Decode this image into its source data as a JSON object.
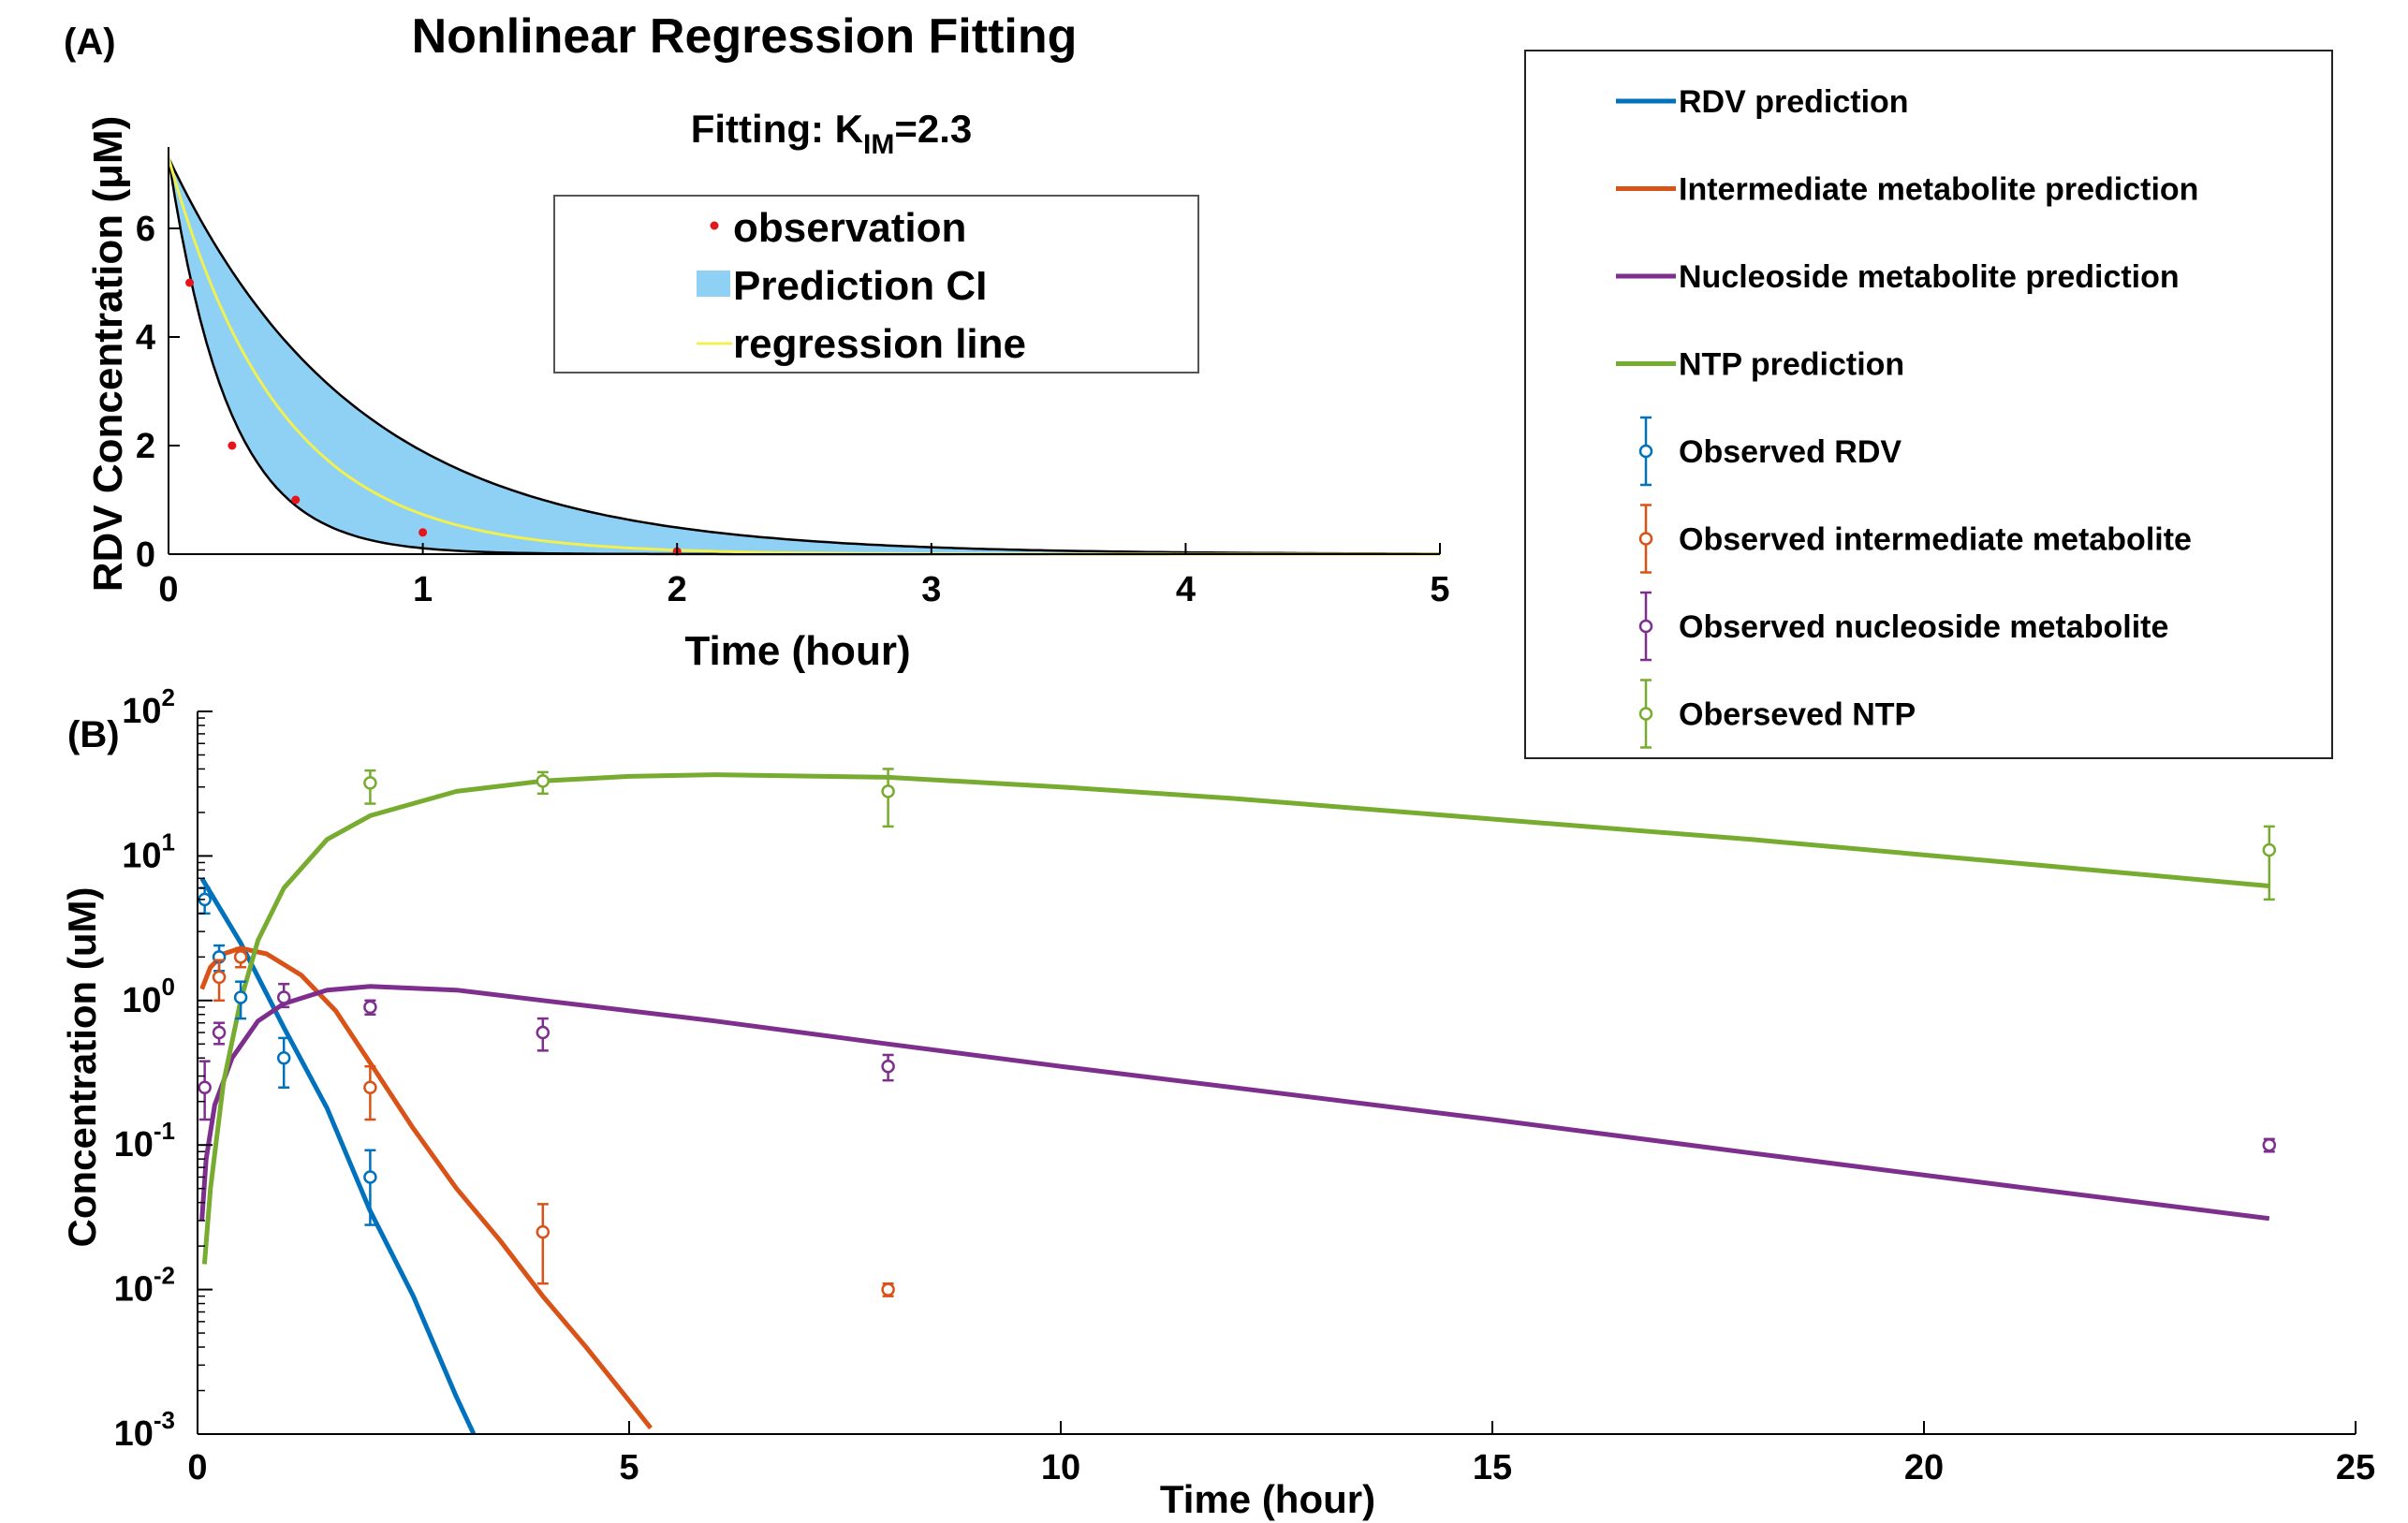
{
  "figure": {
    "panel_a_label": "(A)",
    "panel_b_label": "(B)"
  },
  "chart_data": [
    {
      "type": "area",
      "panel": "(A)",
      "title": "Nonlinear Regression Fitting",
      "subtitle": {
        "prefix": "Fitting: K",
        "subscript": "IM",
        "suffix": "=2.3"
      },
      "xlabel": "Time (hour)",
      "ylabel": "RDV Concentration (μM)",
      "xlim": [
        0,
        5
      ],
      "ylim": [
        0,
        7.5
      ],
      "xticks": [
        0,
        1,
        2,
        3,
        4,
        5
      ],
      "yticks": [
        0,
        2,
        4,
        6
      ],
      "grid": false,
      "legend": {
        "placement": "inside top-center",
        "entries": [
          "observation",
          "Prediction CI",
          "regression line"
        ]
      },
      "series": [
        {
          "name": "observation",
          "kind": "scatter",
          "color": "#e4151b",
          "x": [
            0.083,
            0.25,
            0.5,
            1,
            2
          ],
          "y": [
            5.0,
            2.0,
            1.0,
            0.4,
            0.05
          ]
        },
        {
          "name": "regression line",
          "kind": "line",
          "color": "#f0f050",
          "model": "exponential decay",
          "c0": 7.3,
          "k": 2.3
        },
        {
          "name": "Prediction CI",
          "kind": "band",
          "color": "#8fd0f5",
          "edge_color": "#000000",
          "c0": 7.3,
          "k_lower": 1.35,
          "k_upper": 4.2
        }
      ]
    },
    {
      "type": "line",
      "panel": "(B)",
      "xlabel": "Time (hour)",
      "ylabel": "Concentration (uM)",
      "xlim": [
        0,
        25
      ],
      "ylim": [
        0.001,
        100
      ],
      "yscale": "log",
      "xticks": [
        0,
        5,
        10,
        15,
        20,
        25
      ],
      "yticks": [
        {
          "base": "10",
          "exp": "-3"
        },
        {
          "base": "10",
          "exp": "-2"
        },
        {
          "base": "10",
          "exp": "-1"
        },
        {
          "base": "10",
          "exp": "0"
        },
        {
          "base": "10",
          "exp": "1"
        },
        {
          "base": "10",
          "exp": "2"
        }
      ],
      "grid": false,
      "legend": {
        "placement": "top-right",
        "entries": [
          "RDV prediction",
          "Intermediate metabolite prediction",
          "Nucleoside metabolite prediction",
          "NTP prediction",
          "Observed RDV",
          "Observed intermediate metabolite",
          "Observed nucleoside metabolite",
          "Oberseved NTP"
        ]
      },
      "series": [
        {
          "name": "RDV prediction",
          "kind": "line",
          "color": "#0072bd",
          "x": [
            0.05,
            0.5,
            1,
            1.5,
            2,
            2.5,
            3,
            3.2
          ],
          "y": [
            7.0,
            2.5,
            0.65,
            0.18,
            0.035,
            0.009,
            0.0018,
            0.001
          ]
        },
        {
          "name": "Intermediate metabolite prediction",
          "kind": "line",
          "color": "#d95319",
          "x": [
            0.05,
            0.15,
            0.3,
            0.5,
            0.8,
            1.2,
            1.6,
            2,
            2.5,
            3,
            3.5,
            4,
            4.5,
            5,
            5.25
          ],
          "y": [
            1.2,
            1.7,
            2.1,
            2.3,
            2.1,
            1.5,
            0.85,
            0.37,
            0.13,
            0.05,
            0.022,
            0.009,
            0.004,
            0.0017,
            0.0011
          ]
        },
        {
          "name": "Nucleoside metabolite prediction",
          "kind": "line",
          "color": "#7e2f8e",
          "x": [
            0.05,
            0.1,
            0.2,
            0.4,
            0.7,
            1,
            1.5,
            2,
            3,
            4,
            6,
            8,
            10,
            12,
            15,
            18,
            21,
            24
          ],
          "y": [
            0.03,
            0.08,
            0.19,
            0.4,
            0.72,
            0.95,
            1.18,
            1.25,
            1.18,
            1.0,
            0.72,
            0.5,
            0.35,
            0.25,
            0.15,
            0.088,
            0.052,
            0.031
          ]
        },
        {
          "name": "NTP prediction",
          "kind": "line",
          "color": "#77ac30",
          "x": [
            0.08,
            0.15,
            0.3,
            0.5,
            0.7,
            1,
            1.5,
            2,
            3,
            4,
            5,
            6,
            8,
            10,
            12,
            15,
            18,
            21,
            24
          ],
          "y": [
            0.015,
            0.05,
            0.27,
            1.0,
            2.6,
            6.0,
            13,
            19,
            28,
            33,
            35.5,
            36.5,
            35,
            30,
            25,
            18,
            13,
            9,
            6.2
          ]
        },
        {
          "name": "Observed RDV",
          "kind": "errorbar",
          "color": "#0072bd",
          "x": [
            0.083,
            0.25,
            0.5,
            1,
            2
          ],
          "y": [
            5.0,
            2.0,
            1.05,
            0.4,
            0.06
          ],
          "ylow": [
            4.0,
            1.6,
            0.75,
            0.25,
            0.028
          ],
          "yhigh": [
            6.0,
            2.4,
            1.35,
            0.55,
            0.092
          ]
        },
        {
          "name": "Observed intermediate metabolite",
          "kind": "errorbar",
          "color": "#d95319",
          "x": [
            0.25,
            0.5,
            2,
            4,
            8
          ],
          "y": [
            1.45,
            2.0,
            0.25,
            0.025,
            0.01
          ],
          "ylow": [
            1.0,
            1.7,
            0.15,
            0.011,
            0.009
          ],
          "yhigh": [
            1.9,
            2.3,
            0.35,
            0.039,
            0.011
          ]
        },
        {
          "name": "Observed nucleoside metabolite",
          "kind": "errorbar",
          "color": "#7e2f8e",
          "x": [
            0.083,
            0.25,
            1,
            2,
            4,
            8,
            24
          ],
          "y": [
            0.25,
            0.6,
            1.05,
            0.9,
            0.6,
            0.35,
            0.1
          ],
          "ylow": [
            0.15,
            0.5,
            0.9,
            0.8,
            0.45,
            0.28,
            0.09
          ],
          "yhigh": [
            0.38,
            0.7,
            1.3,
            1.0,
            0.75,
            0.42,
            0.11
          ]
        },
        {
          "name": "Oberseved NTP",
          "kind": "errorbar",
          "color": "#77ac30",
          "x": [
            2,
            4,
            8,
            24
          ],
          "y": [
            32,
            33,
            28,
            11
          ],
          "ylow": [
            23,
            27,
            16,
            5
          ],
          "yhigh": [
            39,
            38,
            40,
            16
          ]
        }
      ]
    }
  ]
}
